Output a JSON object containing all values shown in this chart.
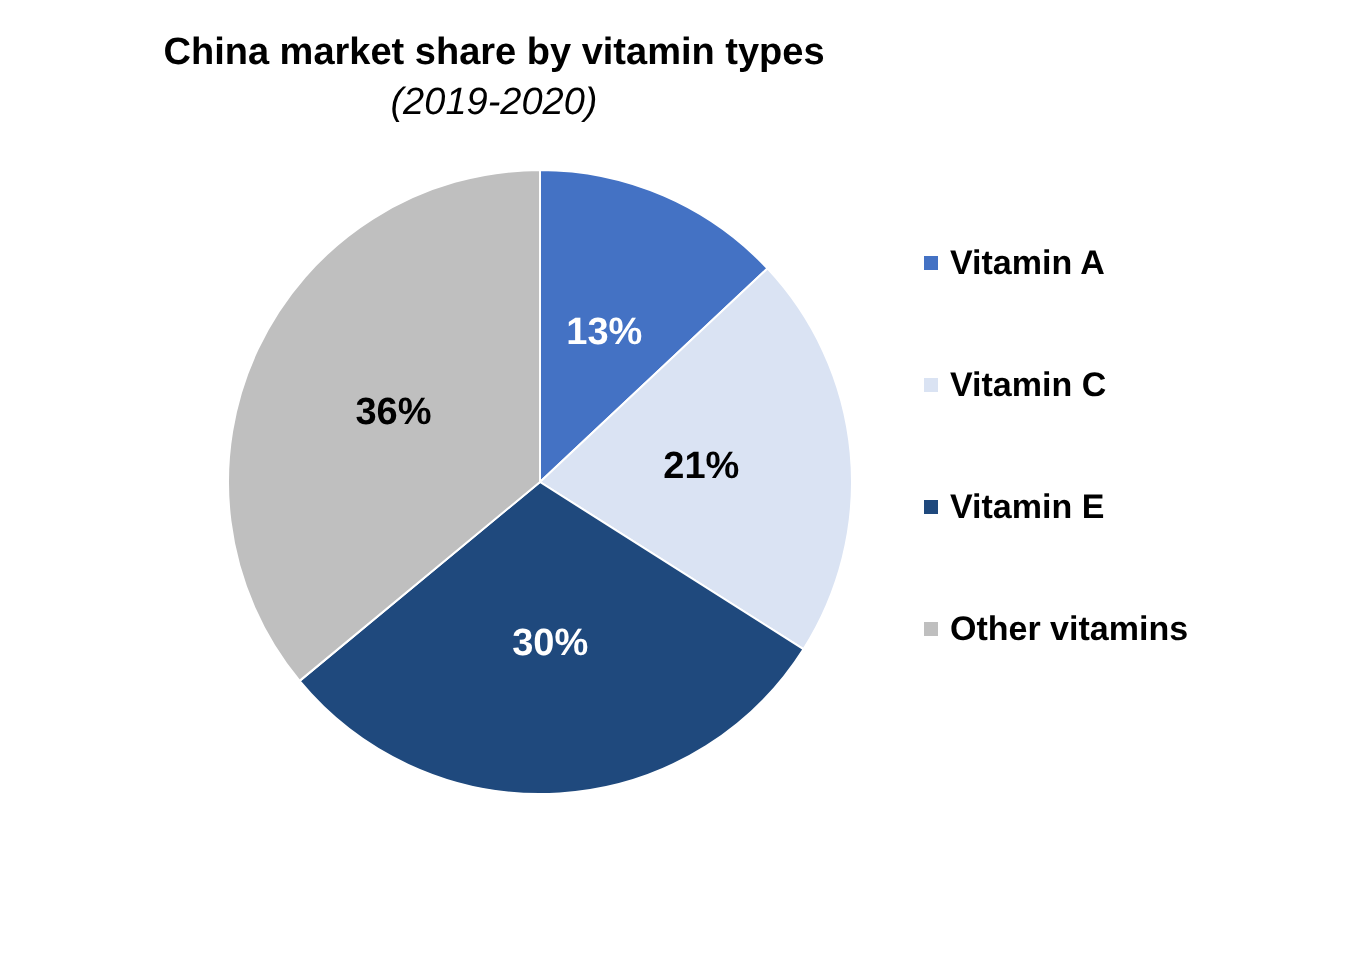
{
  "chart_data": {
    "type": "pie",
    "title": "China market share by vitamin types",
    "subtitle": "(2019-2020)",
    "categories": [
      "Vitamin A",
      "Vitamin C",
      "Vitamin E",
      "Other vitamins"
    ],
    "values": [
      13,
      21,
      30,
      36
    ],
    "colors": [
      "#4472c4",
      "#dae3f3",
      "#1f497d",
      "#bfbfbf"
    ],
    "value_labels": [
      "13%",
      "21%",
      "30%",
      "36%"
    ],
    "legend": "right"
  }
}
